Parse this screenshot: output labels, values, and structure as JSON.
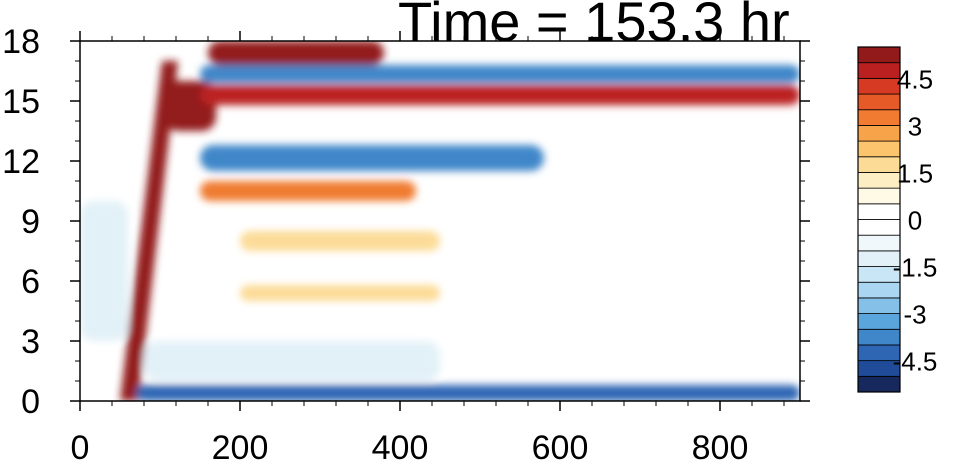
{
  "chart_data": {
    "type": "heatmap",
    "title": "Time = 153.3 hr",
    "x_ticks": [
      "0",
      "200",
      "400",
      "600",
      "800"
    ],
    "x_tick_values": [
      0,
      200,
      400,
      600,
      800
    ],
    "xlim": [
      0,
      900
    ],
    "y_ticks": [
      "0",
      "3",
      "6",
      "9",
      "12",
      "15",
      "18"
    ],
    "y_tick_values": [
      0,
      3,
      6,
      9,
      12,
      15,
      18
    ],
    "ylim": [
      0,
      18
    ],
    "xlabel": "",
    "ylabel": "",
    "colorbar": {
      "levels": [
        -5.5,
        -5,
        -4.5,
        -4,
        -3.5,
        -3,
        -2.5,
        -2,
        -1.5,
        -1,
        -0.5,
        0,
        0.5,
        1,
        1.5,
        2,
        2.5,
        3,
        3.5,
        4,
        4.5,
        5,
        5.5
      ],
      "tick_labels": [
        "4.5",
        "3",
        "1.5",
        "0",
        "-1.5",
        "-3",
        "-4.5"
      ],
      "tick_values": [
        4.5,
        3,
        1.5,
        0,
        -1.5,
        -3,
        -4.5
      ],
      "colors": [
        "#17285c",
        "#1f4b99",
        "#2f66b4",
        "#3f87c9",
        "#5aa5dc",
        "#85c0e8",
        "#aad6f1",
        "#c8e6f5",
        "#e2f1f8",
        "#f1f8fc",
        "#ffffff",
        "#ffffff",
        "#fefae6",
        "#fdeec4",
        "#fcdb97",
        "#fbc46d",
        "#f7a34a",
        "#f07b31",
        "#e65a28",
        "#d63a22",
        "#bb2020",
        "#931a1a"
      ]
    },
    "features": [
      {
        "x": [
          60,
          110
        ],
        "y": [
          0,
          17
        ],
        "value": 5,
        "kind": "diagonal band"
      },
      {
        "x": [
          105,
          170
        ],
        "y": [
          13.5,
          16
        ],
        "value": 5.5
      },
      {
        "x": [
          150,
          900
        ],
        "y": [
          14.8,
          15.8
        ],
        "value": 4.5
      },
      {
        "x": [
          150,
          900
        ],
        "y": [
          15.9,
          16.8
        ],
        "value": -4
      },
      {
        "x": [
          160,
          380
        ],
        "y": [
          16.8,
          18
        ],
        "value": 5.2
      },
      {
        "x": [
          150,
          580
        ],
        "y": [
          11.5,
          12.8
        ],
        "value": -4
      },
      {
        "x": [
          150,
          420
        ],
        "y": [
          10,
          11
        ],
        "value": 3
      },
      {
        "x": [
          200,
          450
        ],
        "y": [
          7.5,
          8.5
        ],
        "value": 1.5
      },
      {
        "x": [
          200,
          450
        ],
        "y": [
          5,
          5.8
        ],
        "value": 1.5
      },
      {
        "x": [
          70,
          900
        ],
        "y": [
          0,
          0.8
        ],
        "value": -4.5
      },
      {
        "x": [
          80,
          450
        ],
        "y": [
          1,
          3
        ],
        "value": -1.2
      },
      {
        "x": [
          0,
          60
        ],
        "y": [
          3,
          10
        ],
        "value": -1.5
      }
    ]
  }
}
